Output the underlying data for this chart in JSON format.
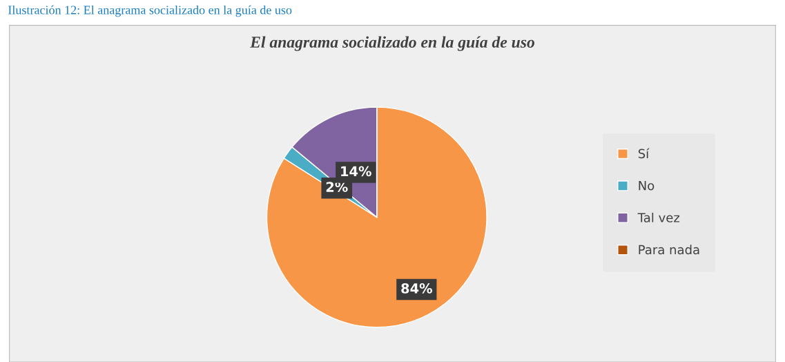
{
  "chart_data": {
    "type": "pie",
    "title": "El anagrama socializado en la guía de uso",
    "annotations": [
      "Ilustración 12: El anagrama socializado en la guía de uso"
    ],
    "categories": [
      "Sí",
      "No",
      "Tal vez",
      "Para nada"
    ],
    "values": [
      84,
      2,
      14,
      0
    ],
    "colors": [
      "#f79646",
      "#4bacc6",
      "#8064a2",
      "#b5540c"
    ],
    "value_labels": [
      "84%",
      "2%",
      "14%",
      null
    ],
    "legend": "right"
  }
}
